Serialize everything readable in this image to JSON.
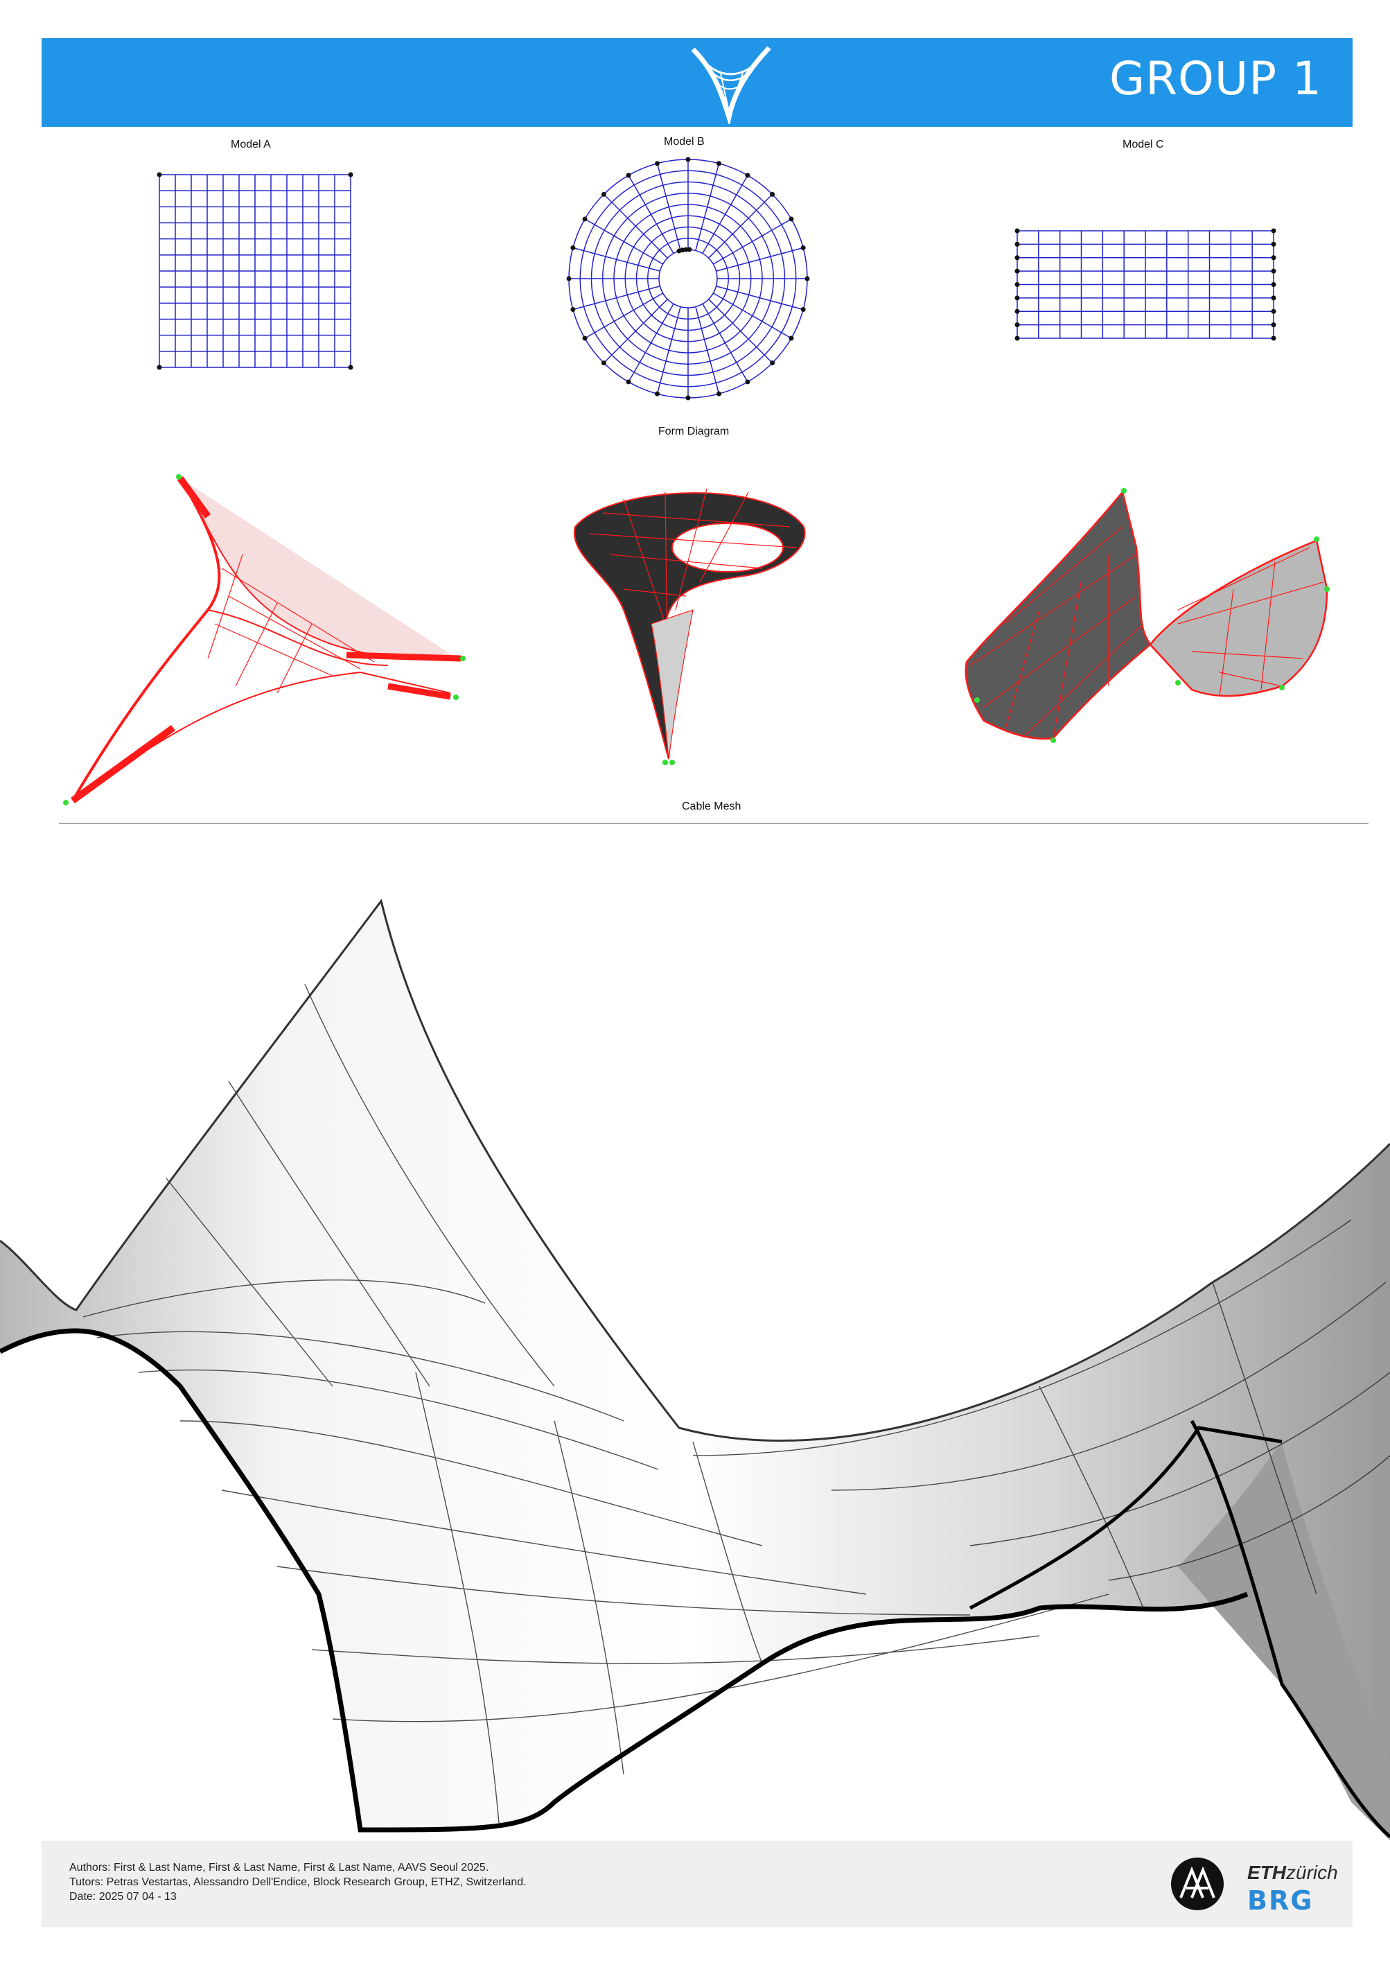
{
  "header": {
    "title": "GROUP 1",
    "logo_icon": "shell-structure-icon",
    "color": "#2196e8"
  },
  "form_diagram": {
    "section_label": "Form Diagram",
    "models": [
      {
        "label": "Model A"
      },
      {
        "label": "Model B"
      },
      {
        "label": "Model C"
      }
    ],
    "line_color": "#2222cc"
  },
  "cable_mesh": {
    "section_label": "Cable Mesh",
    "edge_color": "#ff1a1a",
    "support_color": "#33dd33"
  },
  "footer": {
    "authors": "Authors: First & Last Name, First & Last Name, First & Last Name, AAVS Seoul 2025.",
    "tutors": "Tutors: Petras Vestartas, Alessandro Dell'Endice, Block Research Group, ETHZ, Switzerland.",
    "date": "Date: 2025 07 04 - 13",
    "aa_logo": "AA",
    "eth_logo_bold": "ETH",
    "eth_logo_rest": "zürich",
    "brg_logo": "BRG"
  }
}
